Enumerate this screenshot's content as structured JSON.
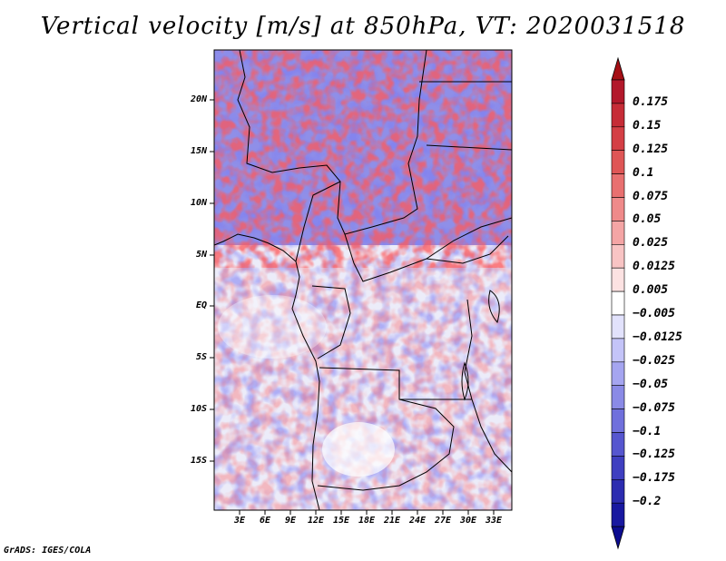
{
  "title": "Vertical velocity [m/s] at 850hPa, VT: 2020031518",
  "footer": "GrADS: IGES/COLA",
  "map": {
    "lat_labels": [
      "20N",
      "15N",
      "10N",
      "5N",
      "EQ",
      "5S",
      "10S",
      "15S"
    ],
    "lon_labels": [
      "3E",
      "6E",
      "9E",
      "12E",
      "15E",
      "18E",
      "21E",
      "24E",
      "27E",
      "30E",
      "33E"
    ]
  },
  "colorbar": {
    "labels": [
      "0.175",
      "0.15",
      "0.125",
      "0.1",
      "0.075",
      "0.05",
      "0.025",
      "0.0125",
      "0.005",
      "−0.005",
      "−0.0125",
      "−0.025",
      "−0.05",
      "−0.075",
      "−0.1",
      "−0.125",
      "−0.175",
      "−0.2"
    ],
    "colors": [
      "#b2182b",
      "#c62c37",
      "#d43f45",
      "#df5656",
      "#e87070",
      "#ef8a8a",
      "#f4a5a5",
      "#f8c4c4",
      "#fce2e2",
      "#ffffff",
      "#e2e2fc",
      "#c4c4f8",
      "#a5a5f0",
      "#8a8ae6",
      "#7070dc",
      "#5656cf",
      "#3f3fc0",
      "#2c2cb0",
      "#1818a0"
    ],
    "top_arrow_color": "#a50f15",
    "bottom_arrow_color": "#0c0c90"
  }
}
